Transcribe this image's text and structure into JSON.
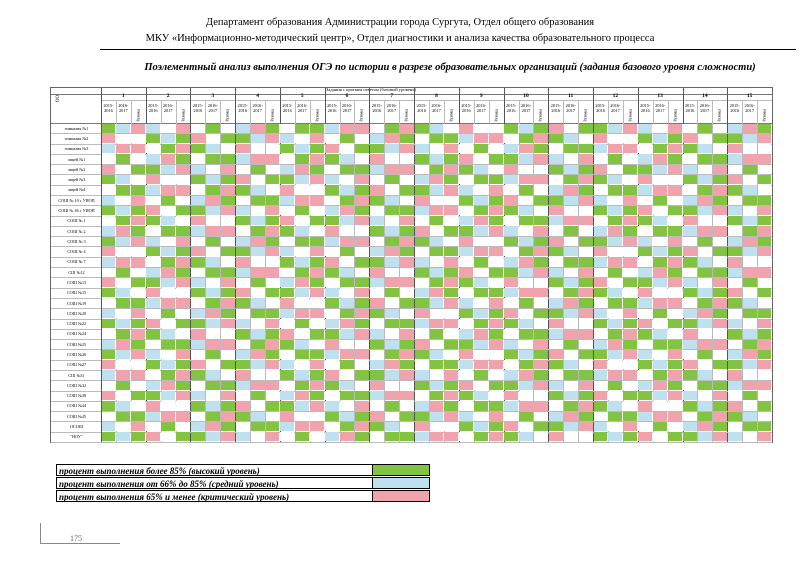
{
  "header": {
    "line1": "Департамент образования Администрации города Сургута, Отдел общего образования",
    "line2": "МКУ «Информационно-методический центр», Отдел диагностики и анализа качества образовательного процесса"
  },
  "title": "Поэлементный анализ выполнения ОГЭ по истории в разрезе образовательных организаций (задания базового уровня сложности)",
  "table": {
    "top_caption": "Задания с кратким ответом (базовый уровень)",
    "corner_label": "ОО",
    "task_numbers": [
      "1",
      "2",
      "3",
      "4",
      "5",
      "6",
      "7",
      "8",
      "9",
      "10",
      "11",
      "12",
      "13",
      "14",
      "15"
    ],
    "year_labels": [
      "2015-2016",
      "2016-2017"
    ],
    "result_label": "Разница",
    "rows": [
      "гимназия №1",
      "гимназия №2",
      "гимназия №3",
      "лицей №1",
      "лицей №2",
      "лицей №3",
      "лицей №4",
      "СОШ № 10 с УИОП",
      "СОШ № 46 с УИОП",
      "СОШ № 1",
      "СОШ № 2",
      "СОШ № 3",
      "СОШ № 4",
      "СОШ № 7",
      "СШ №12",
      "СОШ №13",
      "СОШ №15",
      "СОШ №19",
      "СОШ №20",
      "СОШ №22",
      "СОШ №24",
      "СОШ №25",
      "СОШ №26",
      "СОШ №27",
      "СШ №31",
      "СОШ №32",
      "СОШ №38",
      "СОШ №44",
      "СОШ №45",
      "ОСОШ",
      "\"НОУ\""
    ],
    "colors": {
      "green": "#82c341",
      "blue": "#bfe0ef",
      "red": "#f0a3ad",
      "none": "#ffffff"
    }
  },
  "legend": [
    {
      "text": "процент выполнения более 85% (высокий уровень)",
      "color": "#82c341"
    },
    {
      "text": "процент выполнения от 66% до 85% (средний уровень)",
      "color": "#bfe0ef"
    },
    {
      "text": "процент выполнения 65% и менее (критический уровень)",
      "color": "#f0a3ad"
    }
  ],
  "page_number": "175"
}
